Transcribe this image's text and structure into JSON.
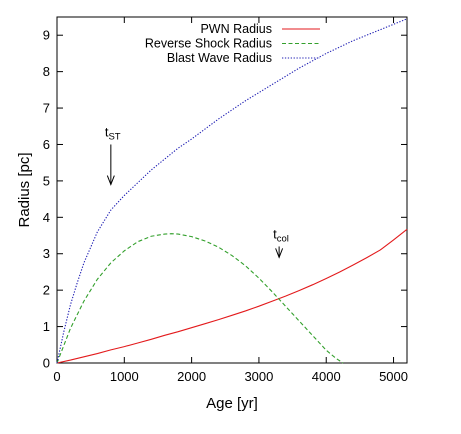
{
  "chart_data": {
    "type": "line",
    "title": "",
    "xlabel": "Age [yr]",
    "ylabel": "Radius [pc]",
    "xlim": [
      0,
      5200
    ],
    "ylim": [
      0,
      9.5
    ],
    "x_ticks": [
      0,
      1000,
      2000,
      3000,
      4000,
      5000
    ],
    "y_ticks": [
      0,
      1,
      2,
      3,
      4,
      5,
      6,
      7,
      8,
      9
    ],
    "grid": false,
    "legend_position": "top-left",
    "series": [
      {
        "name": "PWN Radius",
        "color": "#e31a1c",
        "dash": "solid",
        "x": [
          0,
          200,
          400,
          600,
          800,
          1000,
          1200,
          1400,
          1600,
          1800,
          2000,
          2200,
          2400,
          2600,
          2800,
          3000,
          3200,
          3400,
          3600,
          3800,
          4000,
          4200,
          4400,
          4600,
          4800,
          5000,
          5200
        ],
        "y": [
          0,
          0.08,
          0.17,
          0.26,
          0.36,
          0.45,
          0.55,
          0.65,
          0.76,
          0.86,
          0.97,
          1.08,
          1.19,
          1.31,
          1.43,
          1.56,
          1.7,
          1.84,
          1.99,
          2.15,
          2.32,
          2.5,
          2.69,
          2.89,
          3.1,
          3.38,
          3.67
        ]
      },
      {
        "name": "Reverse Shock Radius",
        "color": "#33a02c",
        "dash": "dashed",
        "x": [
          0,
          200,
          400,
          600,
          800,
          1000,
          1200,
          1400,
          1600,
          1700,
          1800,
          2000,
          2200,
          2400,
          2600,
          2800,
          3000,
          3200,
          3400,
          3600,
          3800,
          4000,
          4150,
          4250
        ],
        "y": [
          0,
          0.95,
          1.7,
          2.3,
          2.75,
          3.08,
          3.33,
          3.48,
          3.54,
          3.55,
          3.54,
          3.47,
          3.35,
          3.18,
          2.95,
          2.67,
          2.33,
          1.95,
          1.55,
          1.15,
          0.75,
          0.35,
          0.12,
          0
        ]
      },
      {
        "name": "Blast Wave Radius",
        "color": "#1f1fb4",
        "dash": "dotted",
        "x": [
          0,
          100,
          200,
          300,
          400,
          600,
          800,
          1000,
          1200,
          1400,
          1600,
          1800,
          2000,
          2400,
          2800,
          3200,
          3600,
          4000,
          4400,
          4800,
          5200
        ],
        "y": [
          0,
          0.85,
          1.6,
          2.2,
          2.75,
          3.6,
          4.2,
          4.6,
          4.95,
          5.3,
          5.6,
          5.9,
          6.15,
          6.7,
          7.2,
          7.65,
          8.1,
          8.5,
          8.85,
          9.15,
          9.45
        ]
      }
    ],
    "annotations": [
      {
        "label": "t",
        "sub": "ST",
        "x": 800,
        "arrow_from_y": 6.0,
        "arrow_to_y": 4.9
      },
      {
        "label": "t",
        "sub": "col",
        "x": 3300,
        "arrow_from_y": 3.2,
        "arrow_to_y": 2.9
      }
    ]
  }
}
